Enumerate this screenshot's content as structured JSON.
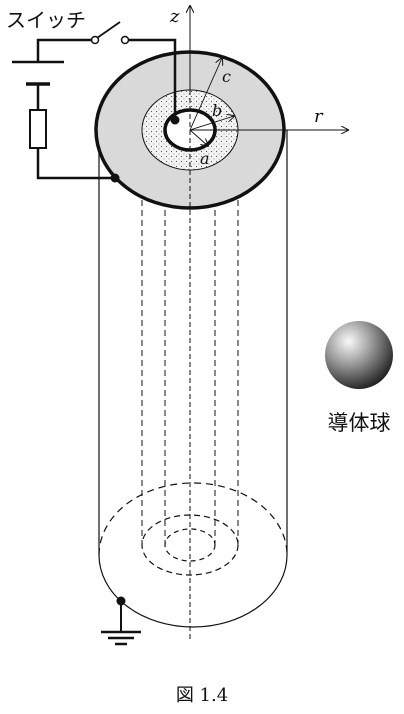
{
  "diagram": {
    "switch_label": "スイッチ",
    "axis_z": "z",
    "axis_r": "r",
    "radius_a": "a",
    "radius_b": "b",
    "radius_c": "c",
    "sphere_label": "導体球",
    "caption": "図 1.4"
  },
  "colors": {
    "outer_shell_fill": "#d9d9d9",
    "dielectric_fill": "#f2f2f2",
    "line": "#111111"
  }
}
